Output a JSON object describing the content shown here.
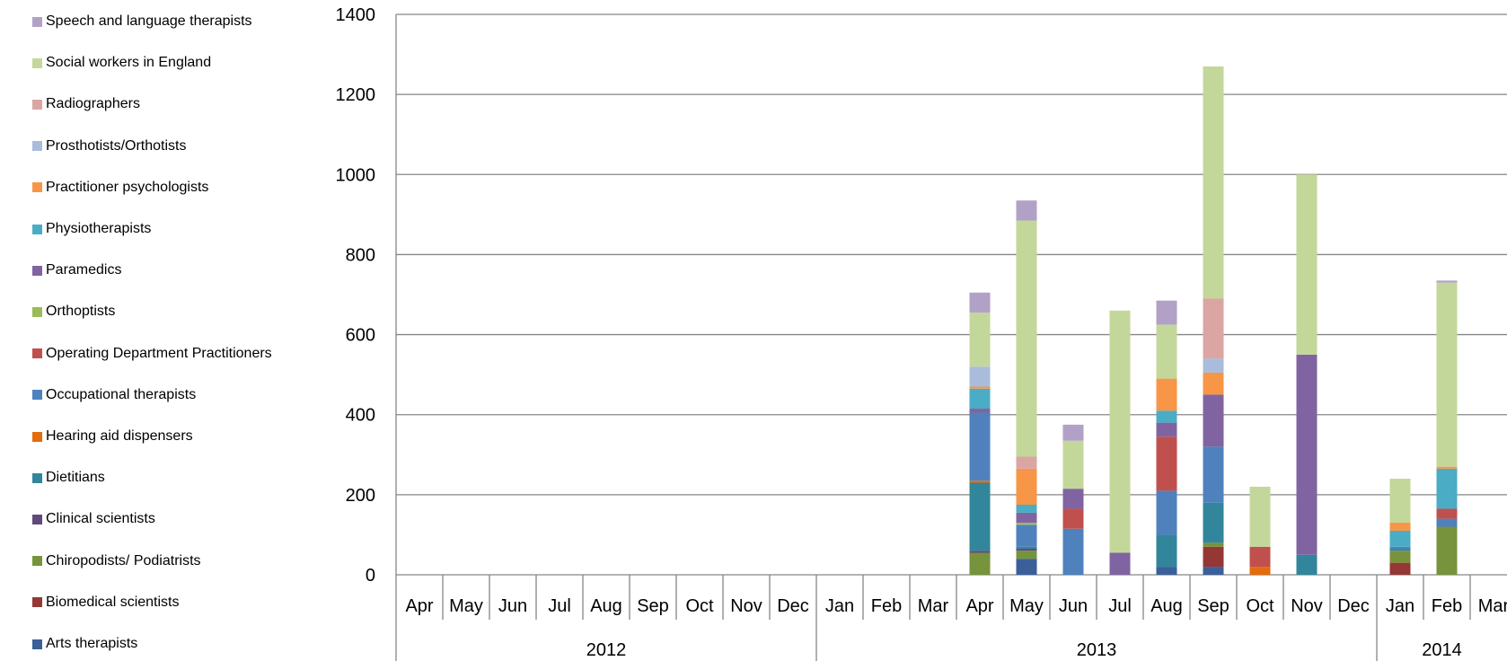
{
  "chart_data": {
    "type": "bar",
    "stacked": true,
    "ylim": [
      0,
      1400
    ],
    "yticks": [
      0,
      200,
      400,
      600,
      800,
      1000,
      1200,
      1400
    ],
    "grid": true,
    "legend_position": "left",
    "categories": [
      "Apr",
      "May",
      "Jun",
      "Jul",
      "Aug",
      "Sep",
      "Oct",
      "Nov",
      "Dec",
      "Jan",
      "Feb",
      "Mar",
      "Apr",
      "May",
      "Jun",
      "Jul",
      "Aug",
      "Sep",
      "Oct",
      "Nov",
      "Dec",
      "Jan",
      "Feb",
      "Mar"
    ],
    "year_groups": [
      {
        "label": "2012",
        "count": 9
      },
      {
        "label": "2013",
        "count": 12
      },
      {
        "label": "2014",
        "count": 3
      }
    ],
    "series": [
      {
        "name": "Arts therapists",
        "color": "#3b5f99",
        "values": [
          0,
          0,
          0,
          0,
          0,
          0,
          0,
          0,
          0,
          0,
          0,
          0,
          0,
          40,
          0,
          0,
          20,
          20,
          0,
          0,
          0,
          0,
          0,
          0
        ]
      },
      {
        "name": "Biomedical scientists",
        "color": "#953734",
        "values": [
          0,
          0,
          0,
          0,
          0,
          0,
          0,
          0,
          0,
          0,
          0,
          0,
          0,
          0,
          0,
          0,
          0,
          50,
          0,
          0,
          0,
          30,
          0,
          0
        ]
      },
      {
        "name": "Chiropodists/ Podiatrists",
        "color": "#77933c",
        "values": [
          0,
          0,
          0,
          0,
          0,
          0,
          0,
          0,
          0,
          0,
          0,
          0,
          55,
          20,
          0,
          0,
          0,
          10,
          0,
          0,
          0,
          30,
          120,
          0
        ]
      },
      {
        "name": "Clinical scientists",
        "color": "#604a7b",
        "values": [
          0,
          0,
          0,
          0,
          0,
          0,
          0,
          0,
          0,
          0,
          0,
          0,
          5,
          5,
          0,
          0,
          0,
          0,
          0,
          0,
          0,
          0,
          0,
          0
        ]
      },
      {
        "name": "Dietitians",
        "color": "#31869b",
        "values": [
          0,
          0,
          0,
          0,
          0,
          0,
          0,
          0,
          0,
          0,
          0,
          0,
          170,
          5,
          0,
          0,
          80,
          100,
          0,
          50,
          0,
          5,
          0,
          0
        ]
      },
      {
        "name": "Hearing aid dispensers",
        "color": "#e46c0a",
        "values": [
          0,
          0,
          0,
          0,
          0,
          0,
          0,
          0,
          0,
          0,
          0,
          0,
          5,
          0,
          0,
          0,
          0,
          0,
          20,
          0,
          0,
          0,
          0,
          0
        ]
      },
      {
        "name": "Occupational therapists",
        "color": "#4f81bd",
        "values": [
          0,
          0,
          0,
          0,
          0,
          0,
          0,
          0,
          0,
          0,
          0,
          0,
          170,
          55,
          115,
          0,
          110,
          140,
          0,
          0,
          0,
          5,
          20,
          0
        ]
      },
      {
        "name": "Operating Department Practitioners",
        "color": "#c0504d",
        "values": [
          0,
          0,
          0,
          0,
          0,
          0,
          0,
          0,
          0,
          0,
          0,
          0,
          0,
          0,
          50,
          0,
          135,
          0,
          50,
          0,
          0,
          0,
          25,
          0
        ]
      },
      {
        "name": "Orthoptists",
        "color": "#9bbb59",
        "values": [
          0,
          0,
          0,
          0,
          0,
          0,
          0,
          0,
          0,
          0,
          0,
          0,
          0,
          5,
          0,
          0,
          0,
          0,
          0,
          0,
          0,
          0,
          0,
          0
        ]
      },
      {
        "name": "Paramedics",
        "color": "#8064a2",
        "values": [
          0,
          0,
          0,
          0,
          0,
          0,
          0,
          0,
          0,
          0,
          0,
          0,
          10,
          25,
          50,
          55,
          35,
          130,
          0,
          500,
          0,
          0,
          0,
          0
        ]
      },
      {
        "name": "Physiotherapists",
        "color": "#4bacc6",
        "values": [
          0,
          0,
          0,
          0,
          0,
          0,
          0,
          0,
          0,
          0,
          0,
          0,
          50,
          20,
          0,
          0,
          30,
          0,
          0,
          0,
          0,
          40,
          100,
          0
        ]
      },
      {
        "name": "Practitioner psychologists",
        "color": "#f79646",
        "values": [
          0,
          0,
          0,
          0,
          0,
          0,
          0,
          0,
          0,
          0,
          0,
          0,
          5,
          90,
          0,
          0,
          80,
          55,
          0,
          0,
          0,
          20,
          5,
          0
        ]
      },
      {
        "name": "Prosthotists/Orthotists",
        "color": "#a9bcdc",
        "values": [
          0,
          0,
          0,
          0,
          0,
          0,
          0,
          0,
          0,
          0,
          0,
          0,
          50,
          0,
          0,
          0,
          0,
          35,
          0,
          0,
          0,
          0,
          0,
          0
        ]
      },
      {
        "name": "Radiographers",
        "color": "#dba5a4",
        "values": [
          0,
          0,
          0,
          0,
          0,
          0,
          0,
          0,
          0,
          0,
          0,
          0,
          0,
          30,
          0,
          0,
          0,
          150,
          0,
          0,
          0,
          0,
          0,
          0
        ]
      },
      {
        "name": "Social workers in England",
        "color": "#c4d79b",
        "values": [
          0,
          0,
          0,
          0,
          0,
          0,
          0,
          0,
          0,
          0,
          0,
          0,
          135,
          590,
          120,
          605,
          135,
          580,
          150,
          450,
          0,
          110,
          460,
          0
        ]
      },
      {
        "name": "Speech and language therapists",
        "color": "#b2a1c7",
        "values": [
          0,
          0,
          0,
          0,
          0,
          0,
          0,
          0,
          0,
          0,
          0,
          0,
          50,
          50,
          40,
          0,
          60,
          0,
          0,
          0,
          0,
          0,
          5,
          0
        ]
      }
    ]
  }
}
